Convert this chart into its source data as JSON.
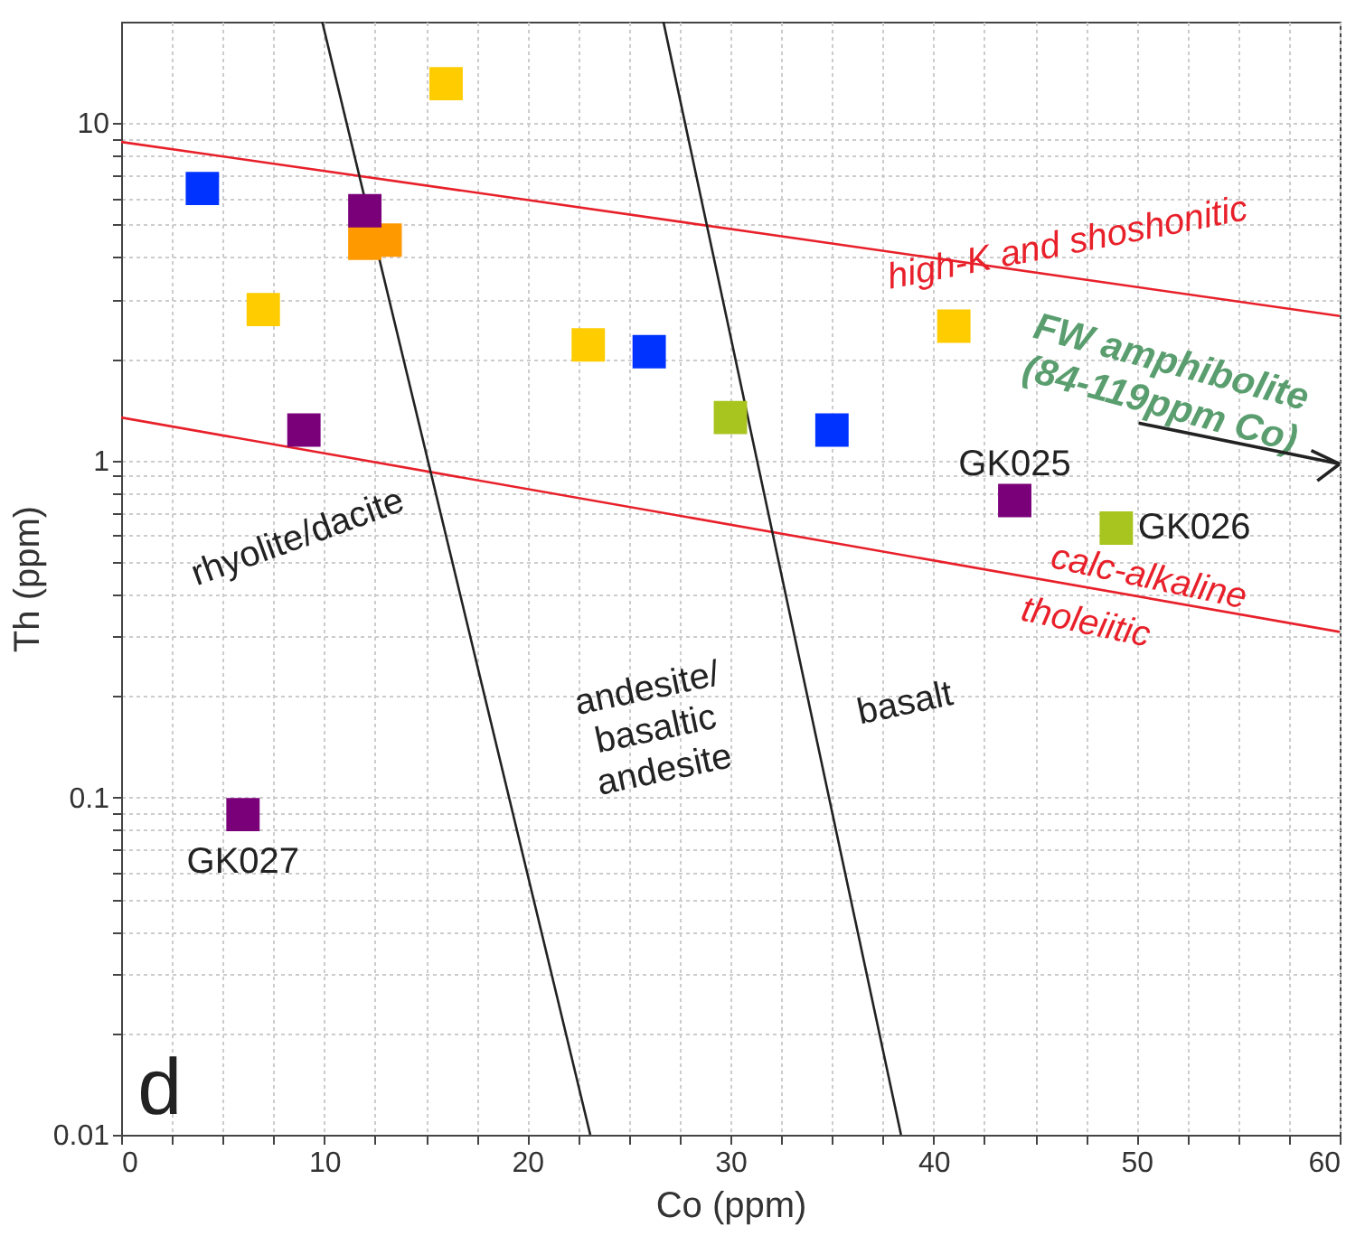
{
  "chart_data": {
    "type": "scatter",
    "xlabel": "Co (ppm)",
    "ylabel": "Th (ppm)",
    "log": "y",
    "grid": true,
    "marker": "square",
    "xlim": [
      0,
      60
    ],
    "ylim": [
      0.01,
      20
    ],
    "xticks": [
      0,
      {
        "value": 2.5,
        "label": null
      },
      {
        "value": 5,
        "label": null
      },
      {
        "value": 7.5,
        "label": null
      },
      10,
      {
        "value": 12.5,
        "label": null
      },
      {
        "value": 15,
        "label": null
      },
      {
        "value": 17.5,
        "label": null
      },
      20,
      {
        "value": 22.5,
        "label": null
      },
      {
        "value": 25,
        "label": null
      },
      {
        "value": 27.5,
        "label": null
      },
      30,
      {
        "value": 32.5,
        "label": null
      },
      {
        "value": 35,
        "label": null
      },
      {
        "value": 37.5,
        "label": null
      },
      40,
      {
        "value": 42.5,
        "label": null
      },
      {
        "value": 45,
        "label": null
      },
      {
        "value": 47.5,
        "label": null
      },
      50,
      {
        "value": 52.5,
        "label": null
      },
      {
        "value": 55,
        "label": null
      },
      {
        "value": 57.5,
        "label": null
      },
      60
    ],
    "yticks": [
      0.01,
      {
        "value": 0.02,
        "label": null
      },
      {
        "value": 0.03,
        "label": null
      },
      {
        "value": 0.04,
        "label": null
      },
      {
        "value": 0.05,
        "label": null
      },
      {
        "value": 0.06,
        "label": null
      },
      {
        "value": 0.07,
        "label": null
      },
      {
        "value": 0.08,
        "label": null
      },
      {
        "value": 0.09,
        "label": null
      },
      0.1,
      {
        "value": 0.2,
        "label": null
      },
      {
        "value": 0.3,
        "label": null
      },
      {
        "value": 0.4,
        "label": null
      },
      {
        "value": 0.5,
        "label": null
      },
      {
        "value": 0.6,
        "label": null
      },
      {
        "value": 0.7,
        "label": null
      },
      {
        "value": 0.8,
        "label": null
      },
      {
        "value": 0.9,
        "label": null
      },
      1,
      {
        "value": 2,
        "label": null
      },
      {
        "value": 3,
        "label": null
      },
      {
        "value": 4,
        "label": null
      },
      {
        "value": 5,
        "label": null
      },
      {
        "value": 6,
        "label": null
      },
      {
        "value": 7,
        "label": null
      },
      {
        "value": 8,
        "label": null
      },
      {
        "value": 9,
        "label": null
      },
      10
    ],
    "series": [
      {
        "type": "line",
        "marker": "none",
        "color": "#e8202a",
        "x": [
          0,
          60
        ],
        "values": [
          8.8,
          2.68
        ]
      },
      {
        "type": "line",
        "marker": "none",
        "color": "#e8202a",
        "x": [
          0,
          60
        ],
        "values": [
          1.34,
          0.31
        ]
      },
      {
        "type": "line",
        "marker": "none",
        "color": "#222222",
        "x": [
          9.9,
          23.1
        ],
        "values": [
          20,
          0.01
        ]
      },
      {
        "type": "line",
        "marker": "none",
        "color": "#222222",
        "x": [
          26.7,
          38.4
        ],
        "values": [
          20,
          0.01
        ]
      },
      {
        "color": "#0033ff",
        "x": [
          4,
          26,
          35
        ],
        "values": [
          6.4,
          2.1,
          1.23
        ]
      },
      {
        "color": "#ffcc00",
        "x": [
          16,
          7,
          23,
          41
        ],
        "values": [
          13.1,
          2.8,
          2.2,
          2.5
        ]
      },
      {
        "color": "#ff9900",
        "x": [
          12,
          13
        ],
        "values": [
          4.4,
          4.5
        ]
      },
      {
        "color": "#7a007a",
        "x": [
          12,
          9,
          44,
          6
        ],
        "values": [
          5.5,
          1.23,
          0.76,
          0.089
        ]
      },
      {
        "color": "#a8c41e",
        "x": [
          30,
          49
        ],
        "values": [
          1.34,
          0.63
        ]
      }
    ],
    "annotations": [
      {
        "text": "GK027",
        "x": 6,
        "y": 0.089
      },
      {
        "text": "GK025",
        "x": 44,
        "y": 0.76
      },
      {
        "text": "GK026",
        "x": 49,
        "y": 0.63
      },
      "rhyolite/dacite",
      "andesite/\nbasaltic\nandesite",
      "basalt",
      "high-K and shoshonitic",
      "calc-alkaline",
      "tholeiitic",
      "FW amphibolite\n(84-119ppm Co)",
      "d"
    ]
  }
}
